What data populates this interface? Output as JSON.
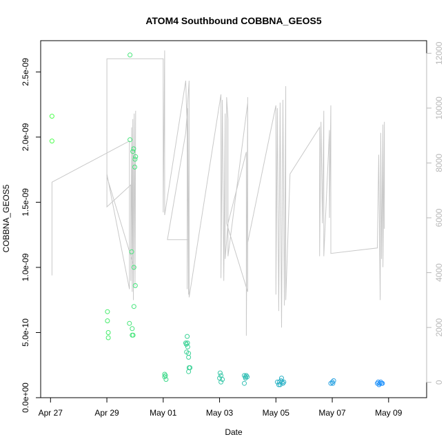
{
  "chart_data": {
    "type": "scatter",
    "title": "ATOM4 Southbound COBBNA_GEOS5",
    "xlabel": "Date",
    "ylabel": "COBBNA_GEOS5",
    "x_ticks": [
      "Apr 27",
      "Apr 29",
      "May 01",
      "May 03",
      "May 05",
      "May 07",
      "May 09"
    ],
    "y_ticks": [
      "0.0e+00",
      "5.0e-10",
      "1.0e-09",
      "1.5e-09",
      "2.0e-09",
      "2.5e-09"
    ],
    "y2_ticks": [
      "0",
      "2000",
      "4000",
      "6000",
      "8000",
      "10000",
      "12000"
    ],
    "xlim": [
      -0.35,
      13.35
    ],
    "ylim": [
      0,
      2.74e-09
    ],
    "y2lim": [
      -560,
      12460
    ],
    "colors": {
      "altitude_line": "#c8c8c8",
      "axis": "#000000",
      "right_axis": "#b8b8b8",
      "palette_start": "#4dff4d",
      "palette_end": "#1f8fff"
    },
    "series": [
      {
        "role": "concentration",
        "points": [
          [
            0.05,
            2.16e-09
          ],
          [
            0.05,
            1.97e-09
          ],
          [
            2.02,
            6.6e-10
          ],
          [
            2.02,
            5.9e-10
          ],
          [
            2.05,
            5e-10
          ],
          [
            2.05,
            4.6e-10
          ],
          [
            2.8,
            5.7e-10
          ],
          [
            2.82,
            1.98e-09
          ],
          [
            2.82,
            2.63e-09
          ],
          [
            2.88,
            1.12e-09
          ],
          [
            2.9,
            5.3e-10
          ],
          [
            2.9,
            4.8e-10
          ],
          [
            2.93,
            4.8e-10
          ],
          [
            2.92,
            1.89e-09
          ],
          [
            2.95,
            1.91e-09
          ],
          [
            2.96,
            1e-09
          ],
          [
            2.96,
            7e-10
          ],
          [
            2.99,
            1.77e-09
          ],
          [
            3.0,
            1.83e-09
          ],
          [
            3.02,
            1.85e-09
          ],
          [
            3.01,
            8.6e-10
          ],
          [
            4.05,
            1.8e-10
          ],
          [
            4.05,
            1.6e-10
          ],
          [
            4.08,
            1.7e-10
          ],
          [
            4.1,
            1.4e-10
          ],
          [
            4.8,
            4.2e-10
          ],
          [
            4.85,
            4.7e-10
          ],
          [
            4.82,
            4.1e-10
          ],
          [
            4.86,
            4.2e-10
          ],
          [
            4.87,
            3.9e-10
          ],
          [
            4.83,
            3.5e-10
          ],
          [
            4.9,
            3.4e-10
          ],
          [
            4.9,
            3.1e-10
          ],
          [
            4.92,
            2.3e-10
          ],
          [
            4.95,
            2.3e-10
          ],
          [
            4.9,
            2e-10
          ],
          [
            6.02,
            1.9e-10
          ],
          [
            6.05,
            1.7e-10
          ],
          [
            6.0,
            1.5e-10
          ],
          [
            6.1,
            1.4e-10
          ],
          [
            6.05,
            1.2e-10
          ],
          [
            6.88,
            1.7e-10
          ],
          [
            6.92,
            1.6e-10
          ],
          [
            6.95,
            1.7e-10
          ],
          [
            6.92,
            1.5e-10
          ],
          [
            6.88,
            1.1e-10
          ],
          [
            6.98,
            1.6e-10
          ],
          [
            8.05,
            1.2e-10
          ],
          [
            8.1,
            1e-10
          ],
          [
            8.12,
            1.2e-10
          ],
          [
            8.15,
            1e-10
          ],
          [
            8.18,
            1.3e-10
          ],
          [
            8.2,
            1.5e-10
          ],
          [
            8.22,
            1.2e-10
          ],
          [
            8.25,
            1.1e-10
          ],
          [
            8.28,
            1.2e-10
          ],
          [
            9.95,
            1.1e-10
          ],
          [
            10.0,
            1.2e-10
          ],
          [
            10.05,
            1.3e-10
          ],
          [
            10.02,
            1.1e-10
          ],
          [
            11.6,
            1.1e-10
          ],
          [
            11.63,
            1.2e-10
          ],
          [
            11.66,
            1e-10
          ],
          [
            11.69,
            1.1e-10
          ],
          [
            11.72,
            1.2e-10
          ],
          [
            11.75,
            1.1e-10
          ],
          [
            11.78,
            1.1e-10
          ]
        ]
      },
      {
        "role": "altitude",
        "axis": "right",
        "points": [
          [
            0.05,
            3900
          ],
          [
            0.05,
            7300
          ],
          [
            2.8,
            8800
          ],
          [
            2.8,
            3400
          ],
          [
            2.0,
            7600
          ],
          [
            2.0,
            11700
          ],
          [
            2.0,
            6400
          ],
          [
            2.85,
            7200
          ],
          [
            2.85,
            3700
          ],
          [
            2.88,
            9300
          ],
          [
            2.9,
            3300
          ],
          [
            2.92,
            9600
          ],
          [
            2.94,
            3000
          ],
          [
            2.97,
            9800
          ],
          [
            3.0,
            3500
          ],
          [
            3.02,
            9900
          ],
          [
            3.0,
            4100
          ],
          [
            2.0,
            7500
          ],
          [
            2.0,
            11800
          ],
          [
            4.0,
            11800
          ],
          [
            4.0,
            6200
          ],
          [
            4.05,
            12100
          ],
          [
            4.05,
            6100
          ],
          [
            4.8,
            11000
          ],
          [
            4.85,
            9100
          ],
          [
            4.85,
            3400
          ],
          [
            4.87,
            10000
          ],
          [
            4.9,
            3200
          ],
          [
            4.92,
            10400
          ],
          [
            4.92,
            5200
          ],
          [
            4.15,
            5200
          ],
          [
            4.8,
            9100
          ],
          [
            4.92,
            11000
          ],
          [
            4.92,
            3100
          ],
          [
            6.05,
            10500
          ],
          [
            6.05,
            3800
          ],
          [
            6.1,
            10300
          ],
          [
            6.15,
            3700
          ],
          [
            6.2,
            9800
          ],
          [
            6.2,
            4500
          ],
          [
            6.3,
            5800
          ],
          [
            6.95,
            8400
          ],
          [
            6.95,
            1700
          ],
          [
            7.0,
            10400
          ],
          [
            7.0,
            3300
          ],
          [
            6.25,
            5800
          ],
          [
            6.25,
            10400
          ],
          [
            6.3,
            9600
          ],
          [
            6.3,
            4600
          ],
          [
            7.0,
            10200
          ],
          [
            7.0,
            5100
          ],
          [
            8.0,
            10100
          ],
          [
            8.0,
            3200
          ],
          [
            8.05,
            10000
          ],
          [
            8.1,
            2600
          ],
          [
            8.15,
            10200
          ],
          [
            8.2,
            2000
          ],
          [
            8.25,
            10300
          ],
          [
            8.3,
            2800
          ],
          [
            8.35,
            10800
          ],
          [
            8.35,
            3000
          ],
          [
            8.5,
            7600
          ],
          [
            9.55,
            9300
          ],
          [
            9.55,
            4600
          ],
          [
            9.6,
            9500
          ],
          [
            9.65,
            5800
          ],
          [
            9.7,
            9900
          ],
          [
            9.7,
            4600
          ],
          [
            9.9,
            9200
          ],
          [
            9.9,
            6000
          ],
          [
            9.95,
            10100
          ],
          [
            9.95,
            4700
          ],
          [
            11.6,
            4900
          ],
          [
            11.65,
            8300
          ],
          [
            11.7,
            3000
          ],
          [
            11.72,
            9100
          ],
          [
            11.75,
            4500
          ],
          [
            11.8,
            9400
          ],
          [
            11.8,
            4200
          ],
          [
            11.85,
            9500
          ],
          [
            11.85,
            5600
          ]
        ]
      }
    ]
  }
}
